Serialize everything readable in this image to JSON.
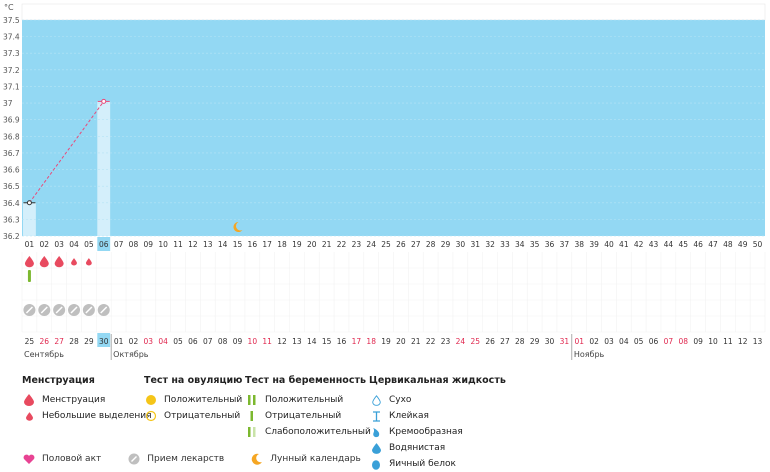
{
  "colors": {
    "chart_bg": "#93d8f3",
    "highlight_col": "#d4effb",
    "menstruation": "#e84a5f",
    "pregnancy_positive": "#7cb82f",
    "pill": "#bfbfbf",
    "moon": "#f5a623",
    "sex": "#e84393",
    "ovulation": "#f5c518",
    "cervical": "#3aa0d8",
    "red_date": "#e0284f"
  },
  "chart_data": {
    "type": "line",
    "ylabel": "°C",
    "ylim": [
      36.2,
      37.5
    ],
    "yticks": [
      "36.2",
      "36.3",
      "36.4",
      "36.5",
      "36.6",
      "36.7",
      "36.8",
      "36.9",
      "37",
      "37.1",
      "37.2",
      "37.3",
      "37.4",
      "37.5"
    ],
    "cycle_days": [
      "01",
      "02",
      "03",
      "04",
      "05",
      "06",
      "07",
      "08",
      "09",
      "10",
      "11",
      "12",
      "13",
      "14",
      "15",
      "16",
      "17",
      "18",
      "19",
      "20",
      "21",
      "22",
      "23",
      "24",
      "25",
      "26",
      "27",
      "28",
      "29",
      "30",
      "31",
      "32",
      "33",
      "34",
      "35",
      "36",
      "37",
      "38",
      "39",
      "40",
      "41",
      "42",
      "43",
      "44",
      "45",
      "46",
      "47",
      "48",
      "49",
      "50"
    ],
    "highlighted_days": [
      1,
      6
    ],
    "points": [
      {
        "x": 1,
        "y": 36.4
      },
      {
        "x": 6,
        "y": 37.01
      }
    ],
    "lunar_day": 15
  },
  "markers": {
    "menstruation_days": [
      1,
      2,
      3
    ],
    "light_discharge_days": [
      4,
      5
    ],
    "pregnancy_test_day": 1,
    "pill_days": [
      1,
      2,
      3,
      4,
      5,
      6
    ]
  },
  "dates": [
    {
      "d": "25",
      "red": false
    },
    {
      "d": "26",
      "red": true
    },
    {
      "d": "27",
      "red": true
    },
    {
      "d": "28",
      "red": false
    },
    {
      "d": "29",
      "red": false
    },
    {
      "d": "30",
      "red": false,
      "today": true
    },
    {
      "d": "01",
      "red": false
    },
    {
      "d": "02",
      "red": false
    },
    {
      "d": "03",
      "red": true
    },
    {
      "d": "04",
      "red": true
    },
    {
      "d": "05",
      "red": false
    },
    {
      "d": "06",
      "red": false
    },
    {
      "d": "07",
      "red": false
    },
    {
      "d": "08",
      "red": false
    },
    {
      "d": "09",
      "red": false
    },
    {
      "d": "10",
      "red": true
    },
    {
      "d": "11",
      "red": true
    },
    {
      "d": "12",
      "red": false
    },
    {
      "d": "13",
      "red": false
    },
    {
      "d": "14",
      "red": false
    },
    {
      "d": "15",
      "red": false
    },
    {
      "d": "16",
      "red": false
    },
    {
      "d": "17",
      "red": true
    },
    {
      "d": "18",
      "red": true
    },
    {
      "d": "19",
      "red": false
    },
    {
      "d": "20",
      "red": false
    },
    {
      "d": "21",
      "red": false
    },
    {
      "d": "22",
      "red": false
    },
    {
      "d": "23",
      "red": false
    },
    {
      "d": "24",
      "red": true
    },
    {
      "d": "25",
      "red": true
    },
    {
      "d": "26",
      "red": false
    },
    {
      "d": "27",
      "red": false
    },
    {
      "d": "28",
      "red": false
    },
    {
      "d": "29",
      "red": false
    },
    {
      "d": "30",
      "red": false
    },
    {
      "d": "31",
      "red": true
    },
    {
      "d": "01",
      "red": true
    },
    {
      "d": "02",
      "red": false
    },
    {
      "d": "03",
      "red": false
    },
    {
      "d": "04",
      "red": false
    },
    {
      "d": "05",
      "red": false
    },
    {
      "d": "06",
      "red": false
    },
    {
      "d": "07",
      "red": true
    },
    {
      "d": "08",
      "red": true
    },
    {
      "d": "09",
      "red": false
    },
    {
      "d": "10",
      "red": false
    },
    {
      "d": "11",
      "red": false
    },
    {
      "d": "12",
      "red": false
    },
    {
      "d": "13",
      "red": false
    }
  ],
  "months": [
    {
      "name": "Сентябрь",
      "start_index": 0
    },
    {
      "name": "Октябрь",
      "start_index": 6
    },
    {
      "name": "Ноябрь",
      "start_index": 37
    }
  ],
  "legend": {
    "menstruation": {
      "title": "Менструация",
      "items": [
        "Менструация",
        "Небольшие выделения"
      ]
    },
    "ovulation": {
      "title": "Тест на овуляцию",
      "items": [
        "Положительный",
        "Отрицательный"
      ]
    },
    "pregnancy": {
      "title": "Тест на беременность",
      "items": [
        "Положительный",
        "Отрицательный",
        "Слабоположительный"
      ]
    },
    "cervical": {
      "title": "Цервикальная жидкость",
      "items": [
        "Сухо",
        "Клейкая",
        "Кремообразная",
        "Водянистая",
        "Яичный белок"
      ]
    },
    "bottom": [
      "Половой акт",
      "Прием лекарств",
      "Лунный календарь"
    ]
  }
}
